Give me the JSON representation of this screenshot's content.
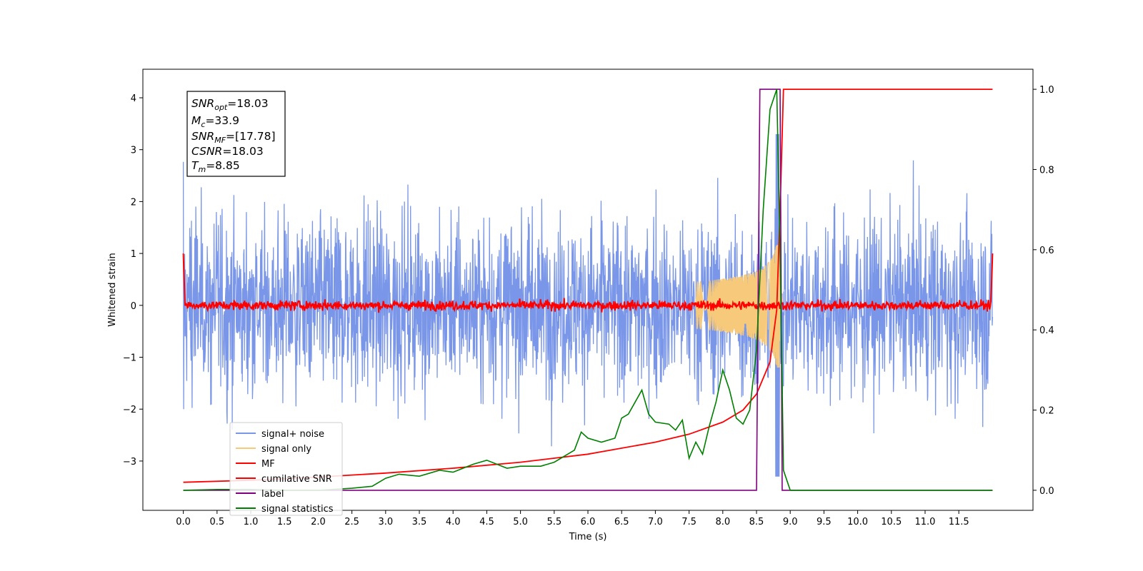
{
  "chart_data": {
    "type": "line",
    "xlabel": "Time (s)",
    "ylabel": "Whitened strain",
    "xlim": [
      -0.6,
      12.6
    ],
    "ylim": [
      -3.95,
      4.55
    ],
    "ylim_right": [
      -0.05,
      1.05
    ],
    "x_ticks": [
      "0.0",
      "0.5",
      "1.0",
      "1.5",
      "2.0",
      "2.5",
      "3.0",
      "3.5",
      "4.0",
      "4.5",
      "5.0",
      "5.5",
      "6.0",
      "6.5",
      "7.0",
      "7.5",
      "8.0",
      "8.5",
      "9.0",
      "9.5",
      "10.0",
      "10.5",
      "11.0",
      "11.5"
    ],
    "y_ticks": [
      "−3",
      "−2",
      "−1",
      "0",
      "1",
      "2",
      "3",
      "4"
    ],
    "y_ticks_right": [
      "0.0",
      "0.2",
      "0.4",
      "0.6",
      "0.8",
      "1.0"
    ],
    "annotation": {
      "lines": [
        {
          "base": "SNR",
          "sub": "opt",
          "value": "=18.03"
        },
        {
          "base": "M",
          "sub": "c",
          "value": "=33.9"
        },
        {
          "base": "SNR",
          "sub": "MF",
          "value": "=[17.78]"
        },
        {
          "base": "CSNR",
          "sub": "",
          "value": "=18.03"
        },
        {
          "base": "T",
          "sub": "m",
          "value": "=8.85"
        }
      ]
    },
    "legend": {
      "placement": "lower-left",
      "entries": [
        {
          "label": "signal+ noise",
          "color": "#7a96e8"
        },
        {
          "label": "signal only",
          "color": "#f7c97a"
        },
        {
          "label": "MF",
          "color": "#ff0000"
        },
        {
          "label": "cumilative SNR",
          "color": "#ff0000"
        },
        {
          "label": "label",
          "color": "#800080"
        },
        {
          "label": "signal statistics",
          "color": "#008000"
        }
      ]
    },
    "series": [
      {
        "name": "signal+ noise",
        "axis": "left",
        "color": "#7a96e8",
        "x_range": [
          0,
          12
        ],
        "amplitude": 1.0,
        "peak_max": 2.8,
        "trough_min": -3.3
      },
      {
        "name": "signal only",
        "axis": "left",
        "color": "#f7c97a",
        "x_range": [
          7.6,
          8.9
        ],
        "peak_amplitude": 1.2,
        "merger_time": 8.85
      },
      {
        "name": "MF",
        "axis": "left",
        "color": "#ff0000",
        "x_range": [
          0,
          12
        ],
        "baseline": 0.0,
        "edge_value": 1.0
      },
      {
        "name": "cumilative SNR",
        "axis": "right",
        "color": "#ff0000",
        "x": [
          0.0,
          1.0,
          2.0,
          3.0,
          4.0,
          5.0,
          6.0,
          7.0,
          7.5,
          8.0,
          8.3,
          8.5,
          8.7,
          8.8,
          8.85,
          8.9,
          12.0
        ],
        "y": [
          0.02,
          0.025,
          0.033,
          0.043,
          0.055,
          0.07,
          0.09,
          0.12,
          0.14,
          0.17,
          0.2,
          0.24,
          0.32,
          0.45,
          0.7,
          1.0,
          1.0
        ]
      },
      {
        "name": "label",
        "axis": "right",
        "color": "#800080",
        "x": [
          0.0,
          8.5,
          8.55,
          8.85,
          8.88,
          12.0
        ],
        "y": [
          0.0,
          0.0,
          1.0,
          1.0,
          0.0,
          0.0
        ]
      },
      {
        "name": "signal statistics",
        "axis": "right",
        "color": "#008000",
        "x": [
          0.0,
          0.5,
          1.0,
          1.5,
          2.0,
          2.5,
          2.8,
          3.0,
          3.2,
          3.5,
          3.8,
          4.0,
          4.3,
          4.5,
          4.8,
          5.0,
          5.3,
          5.5,
          5.8,
          5.9,
          6.0,
          6.2,
          6.4,
          6.5,
          6.6,
          6.7,
          6.8,
          6.9,
          7.0,
          7.2,
          7.3,
          7.4,
          7.5,
          7.6,
          7.7,
          7.8,
          7.9,
          8.0,
          8.1,
          8.2,
          8.3,
          8.4,
          8.5,
          8.6,
          8.7,
          8.8,
          8.85,
          8.9,
          9.0,
          12.0
        ],
        "y": [
          0.0,
          0.002,
          0.002,
          0.0,
          0.0,
          0.005,
          0.01,
          0.03,
          0.04,
          0.035,
          0.05,
          0.045,
          0.065,
          0.075,
          0.055,
          0.06,
          0.06,
          0.07,
          0.1,
          0.145,
          0.13,
          0.12,
          0.13,
          0.18,
          0.19,
          0.22,
          0.25,
          0.19,
          0.17,
          0.165,
          0.15,
          0.175,
          0.08,
          0.12,
          0.09,
          0.16,
          0.22,
          0.3,
          0.25,
          0.18,
          0.165,
          0.2,
          0.35,
          0.7,
          0.95,
          1.0,
          0.6,
          0.05,
          0.0,
          0.0
        ]
      }
    ]
  }
}
